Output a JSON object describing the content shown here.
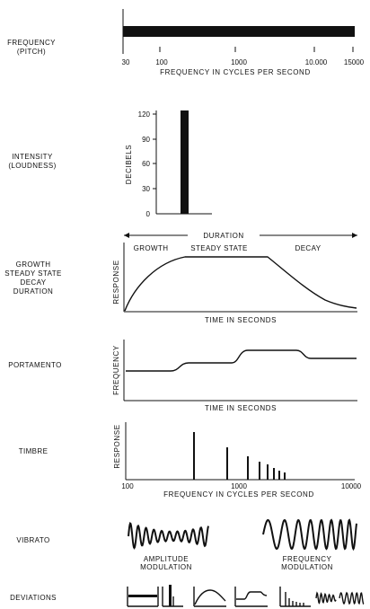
{
  "labels": {
    "frequency": [
      "FREQUENCY",
      "(PITCH)"
    ],
    "intensity": [
      "INTENSITY",
      "(LOUDNESS)"
    ],
    "growth": [
      "GROWTH",
      "STEADY STATE",
      "DECAY",
      "DURATION"
    ],
    "portamento": "PORTAMENTO",
    "timbre": "TIMBRE",
    "vibrato": "VIBRATO",
    "deviations": "DEVIATIONS"
  },
  "frequency_panel": {
    "tick_labels": [
      "30",
      "100",
      "1000",
      "10.000",
      "15000"
    ],
    "xlabel": "FREQUENCY IN CYCLES PER SECOND"
  },
  "intensity_panel": {
    "ylabel": "DECIBELS",
    "tick_labels": [
      "120",
      "90",
      "60",
      "30",
      "0"
    ]
  },
  "envelope_panel": {
    "duration_label": "DURATION",
    "phase_labels": [
      "GROWTH",
      "STEADY STATE",
      "DECAY"
    ],
    "ylabel": "RESPONSE",
    "xlabel": "TIME IN SECONDS"
  },
  "portamento_panel": {
    "ylabel": "FREQUENCY",
    "xlabel": "TIME IN SECONDS"
  },
  "timbre_panel": {
    "ylabel": "RESPONSE",
    "tick_labels": [
      "100",
      "1000",
      "10000"
    ],
    "xlabel": "FREQUENCY IN CYCLES PER SECOND"
  },
  "vibrato_panel": {
    "am_label": [
      "AMPLITUDE",
      "MODULATION"
    ],
    "fm_label": [
      "FREQUENCY",
      "MODULATION"
    ]
  },
  "colors": {
    "ink": "#111111",
    "paper": "#ffffff"
  }
}
